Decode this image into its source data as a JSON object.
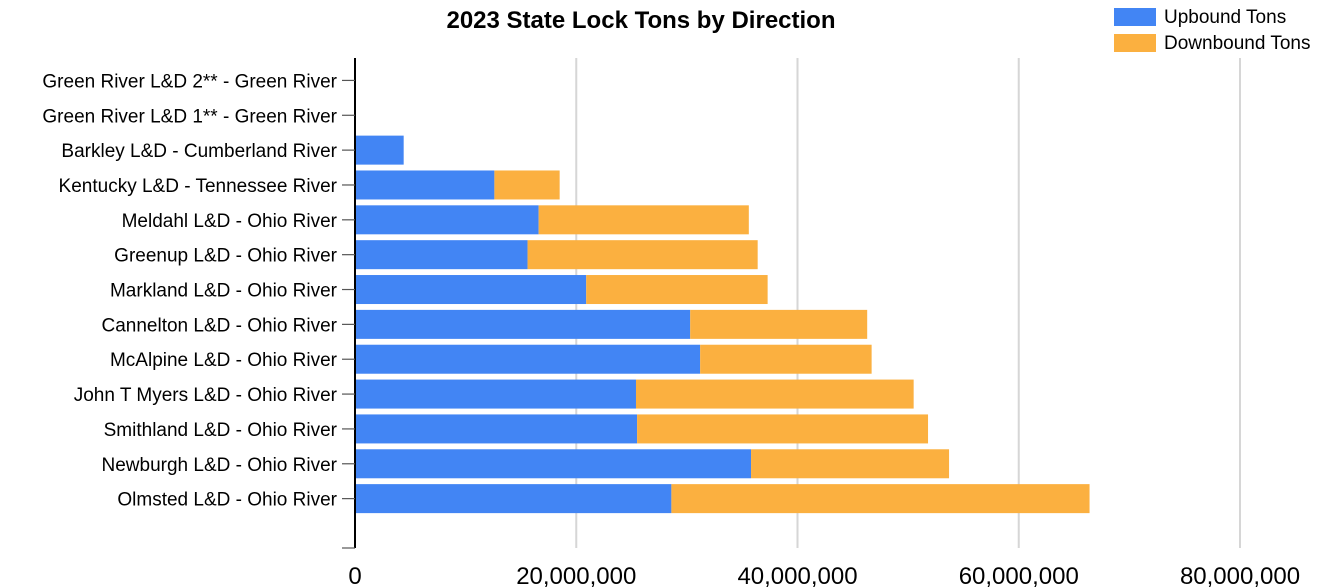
{
  "chart_data": {
    "type": "bar",
    "orientation": "horizontal",
    "stacked": true,
    "title": "2023 State Lock Tons by Direction",
    "xlabel": "",
    "ylabel": "",
    "xlim": [
      0,
      80000000
    ],
    "x_ticks": [
      0,
      20000000,
      40000000,
      60000000,
      80000000
    ],
    "x_tick_labels": [
      "0",
      "20,000,000",
      "40,000,000",
      "60,000,000",
      "80,000,000"
    ],
    "grid": "vertical",
    "legend_position": "top-right",
    "categories": [
      "Green River L&D 2** - Green River",
      "Green River L&D 1** - Green River",
      "Barkley L&D - Cumberland River",
      "Kentucky L&D - Tennessee River",
      "Meldahl L&D - Ohio River",
      "Greenup L&D - Ohio River",
      "Markland L&D - Ohio River",
      "Cannelton L&D - Ohio River",
      "McAlpine L&D - Ohio River",
      "John T Myers L&D - Ohio River",
      "Smithland L&D - Ohio River",
      "Newburgh L&D - Ohio River",
      "Olmsted L&D - Ohio River"
    ],
    "series": [
      {
        "name": "Upbound Tons",
        "color": "#4285F4",
        "values": [
          0,
          0,
          4400000,
          12600000,
          16600000,
          15600000,
          20900000,
          30300000,
          31200000,
          25400000,
          25500000,
          35800000,
          28600000
        ]
      },
      {
        "name": "Downbound Tons",
        "color": "#FBB040",
        "values": [
          0,
          0,
          0,
          5900000,
          19000000,
          20800000,
          16400000,
          16000000,
          15500000,
          25100000,
          26300000,
          17900000,
          37800000
        ]
      }
    ]
  }
}
